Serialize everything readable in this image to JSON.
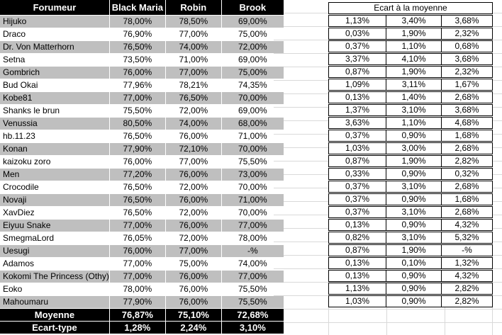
{
  "left_table": {
    "headers": [
      "Forumeur",
      "Black Maria",
      "Robin",
      "Brook"
    ],
    "rows": [
      {
        "name": "Hijuko",
        "values": [
          "78,00%",
          "78,50%",
          "69,00%"
        ]
      },
      {
        "name": "Draco",
        "values": [
          "76,90%",
          "77,00%",
          "75,00%"
        ]
      },
      {
        "name": "Dr. Von Matterhorn",
        "values": [
          "76,50%",
          "74,00%",
          "72,00%"
        ]
      },
      {
        "name": "Setna",
        "values": [
          "73,50%",
          "71,00%",
          "69,00%"
        ]
      },
      {
        "name": "Gombrich",
        "values": [
          "76,00%",
          "77,00%",
          "75,00%"
        ]
      },
      {
        "name": "Bud Okai",
        "values": [
          "77,96%",
          "78,21%",
          "74,35%"
        ]
      },
      {
        "name": "Kobe81",
        "values": [
          "77,00%",
          "76,50%",
          "70,00%"
        ]
      },
      {
        "name": "Shanks le brun",
        "values": [
          "75,50%",
          "72,00%",
          "69,00%"
        ]
      },
      {
        "name": "Venussia",
        "values": [
          "80,50%",
          "74,00%",
          "68,00%"
        ]
      },
      {
        "name": "hb.11.23",
        "values": [
          "76,50%",
          "76,00%",
          "71,00%"
        ]
      },
      {
        "name": "Konan",
        "values": [
          "77,90%",
          "72,10%",
          "70,00%"
        ]
      },
      {
        "name": "kaizoku zoro",
        "values": [
          "76,00%",
          "77,00%",
          "75,50%"
        ]
      },
      {
        "name": "Men",
        "values": [
          "77,20%",
          "76,00%",
          "73,00%"
        ]
      },
      {
        "name": "Crocodile",
        "values": [
          "76,50%",
          "72,00%",
          "70,00%"
        ]
      },
      {
        "name": "Novaji",
        "values": [
          "76,50%",
          "76,00%",
          "71,00%"
        ]
      },
      {
        "name": "XavDiez",
        "values": [
          "76,50%",
          "72,00%",
          "70,00%"
        ]
      },
      {
        "name": "Eiyuu Snake",
        "values": [
          "77,00%",
          "76,00%",
          "77,00%"
        ]
      },
      {
        "name": "SmegmaLord",
        "values": [
          "76,05%",
          "72,00%",
          "78,00%"
        ]
      },
      {
        "name": "Uesugi",
        "values": [
          "76,00%",
          "77,00%",
          "-%"
        ]
      },
      {
        "name": "Adamos",
        "values": [
          "77,00%",
          "75,00%",
          "74,00%"
        ]
      },
      {
        "name": "Kokomi The Princess (Othy)",
        "values": [
          "77,00%",
          "76,00%",
          "77,00%"
        ]
      },
      {
        "name": "Eoko",
        "values": [
          "78,00%",
          "76,00%",
          "75,50%"
        ]
      },
      {
        "name": "Mahoumaru",
        "values": [
          "77,90%",
          "76,00%",
          "75,50%"
        ]
      }
    ],
    "footer_rows": [
      {
        "label": "Moyenne",
        "values": [
          "76,87%",
          "75,10%",
          "72,68%"
        ]
      },
      {
        "label": "Ecart-type",
        "values": [
          "1,28%",
          "2,24%",
          "3,10%"
        ]
      }
    ]
  },
  "right_table": {
    "title": "Ecart à la moyenne",
    "rows": [
      [
        "1,13%",
        "3,40%",
        "3,68%"
      ],
      [
        "0,03%",
        "1,90%",
        "2,32%"
      ],
      [
        "0,37%",
        "1,10%",
        "0,68%"
      ],
      [
        "3,37%",
        "4,10%",
        "3,68%"
      ],
      [
        "0,87%",
        "1,90%",
        "2,32%"
      ],
      [
        "1,09%",
        "3,11%",
        "1,67%"
      ],
      [
        "0,13%",
        "1,40%",
        "2,68%"
      ],
      [
        "1,37%",
        "3,10%",
        "3,68%"
      ],
      [
        "3,63%",
        "1,10%",
        "4,68%"
      ],
      [
        "0,37%",
        "0,90%",
        "1,68%"
      ],
      [
        "1,03%",
        "3,00%",
        "2,68%"
      ],
      [
        "0,87%",
        "1,90%",
        "2,82%"
      ],
      [
        "0,33%",
        "0,90%",
        "0,32%"
      ],
      [
        "0,37%",
        "3,10%",
        "2,68%"
      ],
      [
        "0,37%",
        "0,90%",
        "1,68%"
      ],
      [
        "0,37%",
        "3,10%",
        "2,68%"
      ],
      [
        "0,13%",
        "0,90%",
        "4,32%"
      ],
      [
        "0,82%",
        "3,10%",
        "5,32%"
      ],
      [
        "0,87%",
        "1,90%",
        "-%"
      ],
      [
        "0,13%",
        "0,10%",
        "1,32%"
      ],
      [
        "0,13%",
        "0,90%",
        "4,32%"
      ],
      [
        "1,13%",
        "0,90%",
        "2,82%"
      ],
      [
        "1,03%",
        "0,90%",
        "2,82%"
      ]
    ]
  },
  "colors": {
    "header_bg": "#000000",
    "header_text": "#ffffff",
    "row_alt_bg": "#bfbfbf",
    "cell_border": "#000000",
    "gridline": "#d9d9d9"
  }
}
